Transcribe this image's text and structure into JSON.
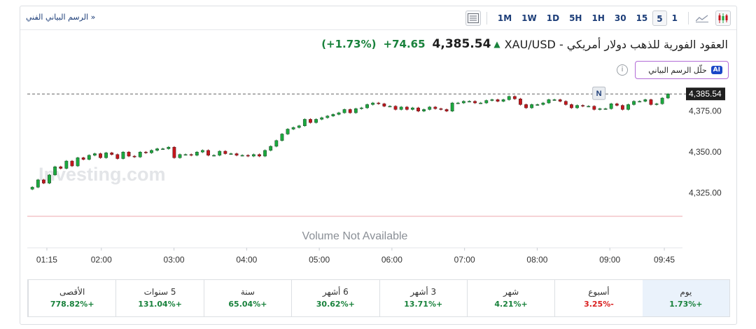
{
  "toolbar": {
    "technical_link": "الرسم البياني الفني »",
    "timeframes": [
      "1M",
      "1W",
      "1D",
      "5H",
      "1H",
      "30",
      "15",
      "5",
      "1"
    ],
    "active_timeframe": "5",
    "icons": [
      "table-icon",
      "area-chart-icon",
      "candlestick-icon"
    ]
  },
  "header": {
    "title": "XAU/USD - العقود الفورية للذهب دولار أمريكي",
    "price": "4,385.54",
    "change": "+74.65",
    "change_pct": "(+1.73%)",
    "up_color": "#19823c"
  },
  "ai_button": {
    "label": "حلّل الرسم البياني",
    "badge": "AI"
  },
  "chart_data": {
    "type": "candlestick",
    "watermark": "Investing.com",
    "volume_text": "Volume Not Available",
    "current_price_label": "4,385.54",
    "current_marker": "N",
    "ylim": [
      4315,
      4392
    ],
    "y_ticks": [
      "4,375.00",
      "4,350.00",
      "4,325.00"
    ],
    "y_tick_values": [
      4375,
      4350,
      4325
    ],
    "x_ticks": [
      "01:15",
      "02:00",
      "03:00",
      "04:00",
      "05:00",
      "06:00",
      "07:00",
      "08:00",
      "09:00",
      "09:45"
    ],
    "x_tick_times": [
      1.25,
      2,
      3,
      4,
      5,
      6,
      7,
      8,
      9,
      9.75
    ],
    "up_color": "#1ba93e",
    "down_color": "#c4161c",
    "closes": [
      4328.5,
      4333.0,
      4331.0,
      4336.0,
      4341.0,
      4340.0,
      4344.5,
      4341.5,
      4346.5,
      4345.5,
      4348.0,
      4349.0,
      4346.5,
      4349.5,
      4348.5,
      4346.0,
      4350.0,
      4347.5,
      4347.0,
      4350.0,
      4349.5,
      4351.0,
      4352.0,
      4352.0,
      4353.0,
      4346.5,
      4348.5,
      4348.5,
      4348.0,
      4350.0,
      4351.0,
      4348.0,
      4348.0,
      4350.5,
      4349.0,
      4349.0,
      4348.0,
      4348.0,
      4347.5,
      4348.5,
      4347.5,
      4351.0,
      4353.5,
      4357.0,
      4361.0,
      4364.0,
      4365.0,
      4366.0,
      4370.0,
      4368.0,
      4370.0,
      4371.0,
      4372.0,
      4373.0,
      4374.0,
      4376.0,
      4374.0,
      4376.5,
      4377.0,
      4379.0,
      4380.0,
      4379.5,
      4378.0,
      4378.0,
      4376.0,
      4377.5,
      4376.0,
      4377.0,
      4375.0,
      4376.0,
      4377.5,
      4376.5,
      4376.0,
      4375.0,
      4380.0,
      4380.0,
      4381.0,
      4381.0,
      4380.0,
      4380.0,
      4381.5,
      4382.0,
      4381.0,
      4382.0,
      4384.0,
      4382.5,
      4379.0,
      4377.0,
      4379.0,
      4379.0,
      4380.0,
      4382.0,
      4382.0,
      4381.0,
      4379.0,
      4377.0,
      4378.5,
      4378.0,
      4378.0,
      4376.0,
      4376.5,
      4376.5,
      4379.5,
      4378.5,
      4376.0,
      4379.0,
      4381.0,
      4381.0,
      4382.0,
      4379.0,
      4379.5,
      4383.0,
      4385.5
    ]
  },
  "periods": [
    {
      "label": "يوم",
      "value": "+1.73%",
      "dir": "pos",
      "active": true
    },
    {
      "label": "أسبوع",
      "value": "-3.25%",
      "dir": "neg",
      "active": false
    },
    {
      "label": "شهر",
      "value": "+4.21%",
      "dir": "pos",
      "active": false
    },
    {
      "label": "3 أشهر",
      "value": "+13.71%",
      "dir": "pos",
      "active": false
    },
    {
      "label": "6 أشهر",
      "value": "+30.62%",
      "dir": "pos",
      "active": false
    },
    {
      "label": "سنة",
      "value": "+65.04%",
      "dir": "pos",
      "active": false
    },
    {
      "label": "5 سنوات",
      "value": "+131.04%",
      "dir": "pos",
      "active": false
    },
    {
      "label": "الأقصى",
      "value": "+778.82%",
      "dir": "pos",
      "active": false
    }
  ]
}
